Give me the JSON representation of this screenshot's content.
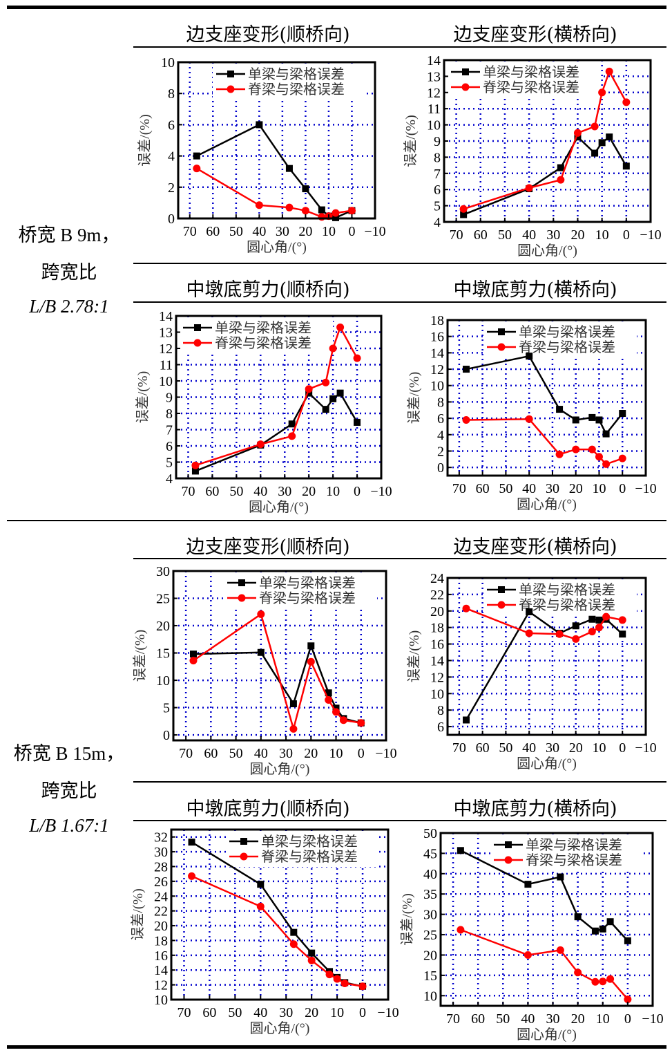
{
  "groups": [
    {
      "width_label": "桥宽 B 9m，",
      "ratio_title": "跨宽比",
      "ratio_label": "L/B 2.78:1"
    },
    {
      "width_label": "桥宽 B 15m，",
      "ratio_title": "跨宽比",
      "ratio_label": "L/B 1.67:1"
    }
  ],
  "colors": {
    "series_black": "#000000",
    "series_red": "#ff0000",
    "grid": "#0000cc"
  },
  "chart_data": [
    {
      "type": "line",
      "title": "边支座变形(顺桥向)",
      "xlabel": "圆心角/(°)",
      "ylabel": "误差/(%)",
      "xlim": [
        75,
        -10
      ],
      "ylim": [
        0,
        10
      ],
      "xticks": [
        70,
        60,
        50,
        40,
        30,
        20,
        10,
        0,
        -10
      ],
      "yticks": [
        0,
        2,
        4,
        6,
        8,
        10
      ],
      "grid": true,
      "legend": "top-right",
      "x": [
        67,
        40,
        27,
        20,
        13,
        10,
        7,
        0
      ],
      "series": [
        {
          "name": "单梁与梁格误差",
          "marker": "square",
          "values": [
            4.0,
            6.0,
            3.2,
            1.9,
            0.55,
            0.15,
            0.05,
            0.5
          ]
        },
        {
          "name": "脊梁与梁格误差",
          "marker": "circle",
          "values": [
            3.2,
            0.85,
            0.7,
            0.5,
            0.1,
            0.15,
            0.35,
            0.5
          ]
        }
      ]
    },
    {
      "type": "line",
      "title": "边支座变形(横桥向)",
      "xlabel": "圆心角/(°)",
      "ylabel": "误差/(%)",
      "xlim": [
        75,
        -10
      ],
      "ylim": [
        4,
        14
      ],
      "xticks": [
        70,
        60,
        50,
        40,
        30,
        20,
        10,
        0,
        -10
      ],
      "yticks": [
        4,
        5,
        6,
        7,
        8,
        9,
        10,
        11,
        12,
        13,
        14
      ],
      "grid": true,
      "legend": "top-left",
      "x": [
        67,
        40,
        27,
        20,
        13,
        10,
        7,
        0
      ],
      "series": [
        {
          "name": "单梁与梁格误差",
          "marker": "square",
          "values": [
            4.45,
            6.05,
            7.35,
            9.25,
            8.25,
            8.9,
            9.25,
            7.45
          ]
        },
        {
          "name": "脊梁与梁格误差",
          "marker": "circle",
          "values": [
            4.8,
            6.1,
            6.6,
            9.5,
            9.9,
            12.0,
            13.3,
            11.4
          ]
        }
      ]
    },
    {
      "type": "line",
      "title": "中墩底剪力(顺桥向)",
      "xlabel": "圆心角/(°)",
      "ylabel": "误差/(%)",
      "xlim": [
        75,
        -10
      ],
      "ylim": [
        4,
        14
      ],
      "xticks": [
        70,
        60,
        50,
        40,
        30,
        20,
        10,
        0,
        -10
      ],
      "yticks": [
        4,
        5,
        6,
        7,
        8,
        9,
        10,
        11,
        12,
        13,
        14
      ],
      "grid": true,
      "legend": "top-left",
      "x": [
        67,
        40,
        27,
        20,
        13,
        10,
        7,
        0
      ],
      "series": [
        {
          "name": "单梁与梁格误差",
          "marker": "square",
          "values": [
            4.45,
            6.05,
            7.35,
            9.25,
            8.25,
            8.9,
            9.25,
            7.45
          ]
        },
        {
          "name": "脊梁与梁格误差",
          "marker": "circle",
          "values": [
            4.8,
            6.1,
            6.6,
            9.5,
            9.9,
            12.0,
            13.3,
            11.4
          ]
        }
      ]
    },
    {
      "type": "line",
      "title": "中墩底剪力(横桥向)",
      "xlabel": "圆心角/(°)",
      "ylabel": "误差/(%)",
      "xlim": [
        75,
        -10
      ],
      "ylim": [
        -1,
        18
      ],
      "xticks": [
        70,
        60,
        50,
        40,
        30,
        20,
        10,
        0,
        -10
      ],
      "yticks": [
        0,
        2,
        4,
        6,
        8,
        10,
        12,
        14,
        16,
        18
      ],
      "grid": true,
      "legend": "top-right",
      "x": [
        67,
        40,
        27,
        20,
        13,
        10,
        7,
        0
      ],
      "series": [
        {
          "name": "单梁与梁格误差",
          "marker": "square",
          "values": [
            12.0,
            13.6,
            7.1,
            5.8,
            6.1,
            5.8,
            4.1,
            6.6
          ]
        },
        {
          "name": "脊梁与梁格误差",
          "marker": "circle",
          "values": [
            5.8,
            5.9,
            1.6,
            2.2,
            2.2,
            1.3,
            0.4,
            1.1
          ]
        }
      ]
    },
    {
      "type": "line",
      "title": "边支座变形(顺桥向)",
      "xlabel": "圆心角/(°)",
      "ylabel": "误差/(%)",
      "xlim": [
        75,
        -10
      ],
      "ylim": [
        -1,
        30
      ],
      "xticks": [
        70,
        60,
        50,
        40,
        30,
        20,
        10,
        0,
        -10
      ],
      "yticks": [
        0,
        5,
        10,
        15,
        20,
        25,
        30
      ],
      "grid": true,
      "legend": "top-right",
      "x": [
        67,
        40,
        27,
        20,
        13,
        10,
        7,
        0
      ],
      "series": [
        {
          "name": "单梁与梁格误差",
          "marker": "square",
          "values": [
            14.8,
            15.1,
            5.7,
            16.3,
            7.7,
            4.9,
            3.0,
            2.2
          ]
        },
        {
          "name": "脊梁与梁格误差",
          "marker": "circle",
          "values": [
            13.6,
            22.1,
            1.1,
            13.4,
            6.4,
            4.2,
            2.7,
            2.2
          ]
        }
      ]
    },
    {
      "type": "line",
      "title": "边支座变形(横桥向)",
      "xlabel": "圆心角/(°)",
      "ylabel": "误差/(%)",
      "xlim": [
        75,
        -10
      ],
      "ylim": [
        5,
        24
      ],
      "xticks": [
        70,
        60,
        50,
        40,
        30,
        20,
        10,
        0,
        -10
      ],
      "yticks": [
        6,
        8,
        10,
        12,
        14,
        16,
        18,
        20,
        22,
        24
      ],
      "grid": true,
      "legend": "top-right",
      "x": [
        67,
        40,
        27,
        20,
        13,
        10,
        7,
        0
      ],
      "series": [
        {
          "name": "单梁与梁格误差",
          "marker": "square",
          "values": [
            6.8,
            19.9,
            17.3,
            18.2,
            19.0,
            18.9,
            19.0,
            17.2
          ]
        },
        {
          "name": "脊梁与梁格误差",
          "marker": "circle",
          "values": [
            20.3,
            17.3,
            17.2,
            16.6,
            17.5,
            18.0,
            19.3,
            18.9
          ]
        }
      ]
    },
    {
      "type": "line",
      "title": "中墩底剪力(顺桥向)",
      "xlabel": "圆心角/(°)",
      "ylabel": "误差/(%)",
      "xlim": [
        75,
        -10
      ],
      "ylim": [
        10,
        33
      ],
      "xticks": [
        70,
        60,
        50,
        40,
        30,
        20,
        10,
        0,
        -10
      ],
      "yticks": [
        10,
        12,
        14,
        16,
        18,
        20,
        22,
        24,
        26,
        28,
        30,
        32
      ],
      "grid": true,
      "legend": "top-right",
      "x": [
        67,
        40,
        27,
        20,
        13,
        10,
        7,
        0
      ],
      "series": [
        {
          "name": "单梁与梁格误差",
          "marker": "square",
          "values": [
            31.3,
            25.6,
            19.1,
            16.3,
            13.8,
            13.0,
            12.3,
            11.8
          ]
        },
        {
          "name": "脊梁与梁格误差",
          "marker": "circle",
          "values": [
            26.7,
            22.6,
            17.5,
            15.3,
            13.4,
            12.8,
            12.2,
            11.8
          ]
        }
      ]
    },
    {
      "type": "line",
      "title": "中墩底剪力(横桥向)",
      "xlabel": "圆心角/(°)",
      "ylabel": "误差/(%)",
      "xlim": [
        75,
        -10
      ],
      "ylim": [
        7.5,
        50
      ],
      "xticks": [
        70,
        60,
        50,
        40,
        30,
        20,
        10,
        0,
        -10
      ],
      "yticks": [
        10,
        15,
        20,
        25,
        30,
        35,
        40,
        45,
        50
      ],
      "grid": true,
      "legend": "top-right",
      "x": [
        67,
        40,
        27,
        20,
        13,
        10,
        7,
        0
      ],
      "series": [
        {
          "name": "单梁与梁格误差",
          "marker": "square",
          "values": [
            45.7,
            37.4,
            39.2,
            29.4,
            25.9,
            26.4,
            28.2,
            23.5
          ]
        },
        {
          "name": "脊梁与梁格误差",
          "marker": "circle",
          "values": [
            26.2,
            20.0,
            21.2,
            15.7,
            13.4,
            13.5,
            14.1,
            9.1
          ]
        }
      ]
    }
  ]
}
